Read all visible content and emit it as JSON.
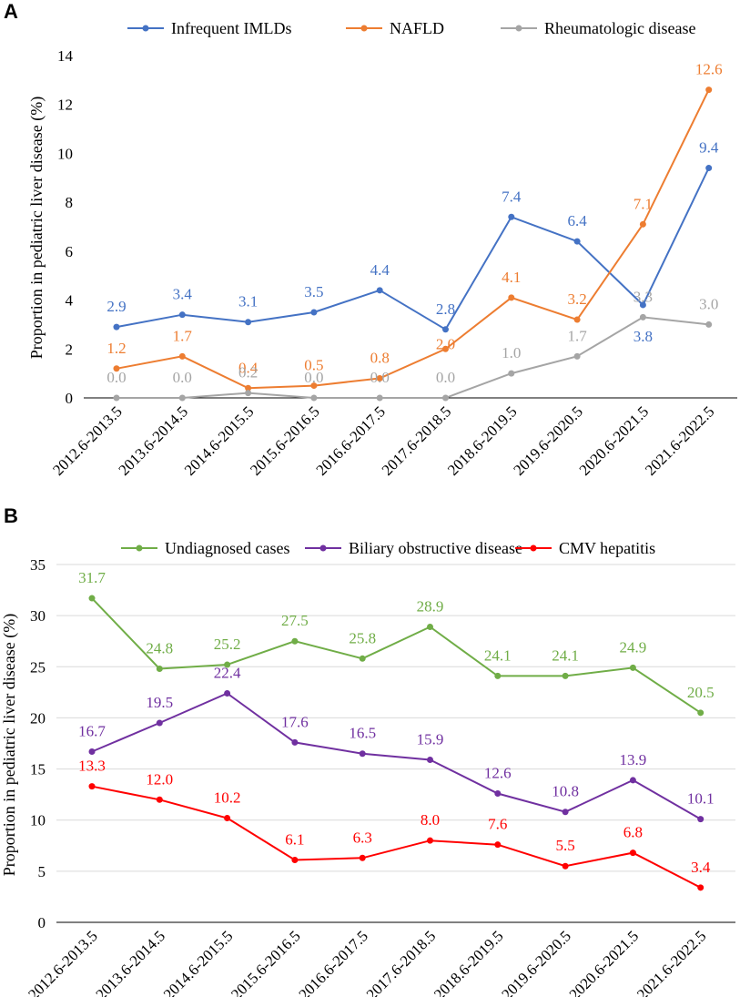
{
  "chart_data": [
    {
      "panel": "A",
      "type": "line",
      "ylabel": "Proportion in pediatric liver disease (%)",
      "xlabel": "",
      "ylim": [
        0,
        14
      ],
      "yticks": [
        0,
        2,
        4,
        6,
        8,
        10,
        12,
        14
      ],
      "legend_position": "top",
      "grid": false,
      "categories": [
        "2012.6-2013.5",
        "2013.6-2014.5",
        "2014.6-2015.5",
        "2015.6-2016.5",
        "2016.6-2017.5",
        "2017.6-2018.5",
        "2018.6-2019.5",
        "2019.6-2020.5",
        "2020.6-2021.5",
        "2021.6-2022.5"
      ],
      "series": [
        {
          "name": "Infrequent IMLDs",
          "color": "#4472c4",
          "values": [
            2.9,
            3.4,
            3.1,
            3.5,
            4.4,
            2.8,
            7.4,
            6.4,
            3.8,
            9.4
          ],
          "labels": [
            "2.9",
            "3.4",
            "3.1",
            "3.5",
            "4.4",
            "2.8",
            "7.4",
            "6.4",
            "3.8",
            "9.4"
          ]
        },
        {
          "name": "NAFLD",
          "color": "#ed7d31",
          "values": [
            1.2,
            1.7,
            0.4,
            0.5,
            0.8,
            2.0,
            4.1,
            3.2,
            7.1,
            12.6
          ],
          "labels": [
            "1.2",
            "1.7",
            "0.4",
            "0.5",
            "0.8",
            "2.0",
            "4.1",
            "3.2",
            "7.1",
            "12.6"
          ]
        },
        {
          "name": "Rheumatologic disease",
          "color": "#a5a5a5",
          "values": [
            0.0,
            0.0,
            0.2,
            0.0,
            0.0,
            0.0,
            1.0,
            1.7,
            3.3,
            3.0
          ],
          "labels": [
            "0.0",
            "0.0",
            "0.2",
            "0.0",
            "0.0",
            "0.0",
            "1.0",
            "1.7",
            "3.3",
            "3.0"
          ]
        }
      ]
    },
    {
      "panel": "B",
      "type": "line",
      "ylabel": "Proportion in pediatric liver disease (%)",
      "xlabel": "",
      "ylim": [
        0,
        35
      ],
      "yticks": [
        0,
        5,
        10,
        15,
        20,
        25,
        30,
        35
      ],
      "legend_position": "top",
      "grid": true,
      "categories": [
        "2012.6-2013.5",
        "2013.6-2014.5",
        "2014.6-2015.5",
        "2015.6-2016.5",
        "2016.6-2017.5",
        "2017.6-2018.5",
        "2018.6-2019.5",
        "2019.6-2020.5",
        "2020.6-2021.5",
        "2021.6-2022.5"
      ],
      "series": [
        {
          "name": "Undiagnosed cases",
          "color": "#70ad47",
          "values": [
            31.7,
            24.8,
            25.2,
            27.5,
            25.8,
            28.9,
            24.1,
            24.1,
            24.9,
            20.5
          ],
          "labels": [
            "31.7",
            "24.8",
            "25.2",
            "27.5",
            "25.8",
            "28.9",
            "24.1",
            "24.1",
            "24.9",
            "20.5"
          ]
        },
        {
          "name": "Biliary obstructive disease",
          "color": "#7030a0",
          "values": [
            16.7,
            19.5,
            22.4,
            17.6,
            16.5,
            15.9,
            12.6,
            10.8,
            13.9,
            10.1
          ],
          "labels": [
            "16.7",
            "19.5",
            "22.4",
            "17.6",
            "16.5",
            "15.9",
            "12.6",
            "10.8",
            "13.9",
            "10.1"
          ]
        },
        {
          "name": "CMV hepatitis",
          "color": "#ff0000",
          "values": [
            13.3,
            12.0,
            10.2,
            6.1,
            6.3,
            8.0,
            7.6,
            5.5,
            6.8,
            3.4
          ],
          "labels": [
            "13.3",
            "12.0",
            "10.2",
            "6.1",
            "6.3",
            "8.0",
            "7.6",
            "5.5",
            "6.8",
            "3.4"
          ]
        }
      ]
    }
  ]
}
